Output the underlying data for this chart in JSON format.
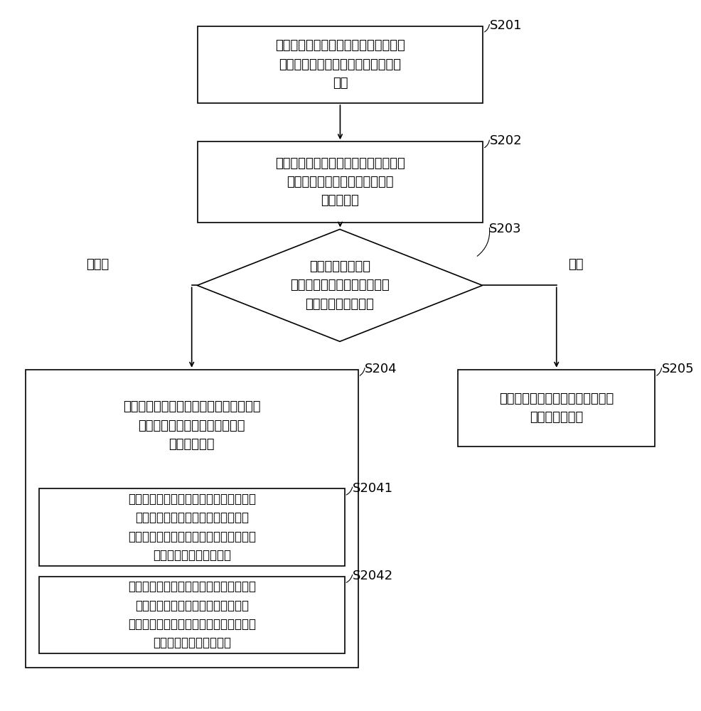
{
  "bg_color": "#ffffff",
  "font_size": 13,
  "label_font_size": 13,
  "s201_text": "当检测到应用程序升级时，下载与所述\n应用程序版本相匹配的音频播放设备\n固件",
  "s202_text": "当升级后的应用程序首次连接音频播放\n设备时，获取所述音频播放设备\n的版本信息",
  "s203_text": "将所述应用程序的\n版本信息与所述音频播放设备\n的版本信息进行匹配",
  "s204_outer_text": "将所述音频播放设备固件发送至所述音频\n播放设备以对所述音频播放设备\n进行固件更新",
  "s2041_text": "当所述应用程序的版本高于所述音频播放\n设备的版本时，将所述音频播放设备\n固件发送至所述音频播放设备以对所述音\n频播放设备进行固件升级",
  "s2042_text": "当所述应用程序的版本低于所述音频播放\n设备的版本时，将所述音频播放设备\n固件发送至所述音频播放设备以对所述音\n频播放设备进行固件降级",
  "s205_text": "通过所述应用程序控制所述音频播\n放设备进行工作",
  "label_s201": "S201",
  "label_s202": "S202",
  "label_s203": "S203",
  "label_s204": "S204",
  "label_s2041": "S2041",
  "label_s2042": "S2042",
  "label_s205": "S205",
  "not_match_text": "不匹配",
  "match_text": "匹配"
}
